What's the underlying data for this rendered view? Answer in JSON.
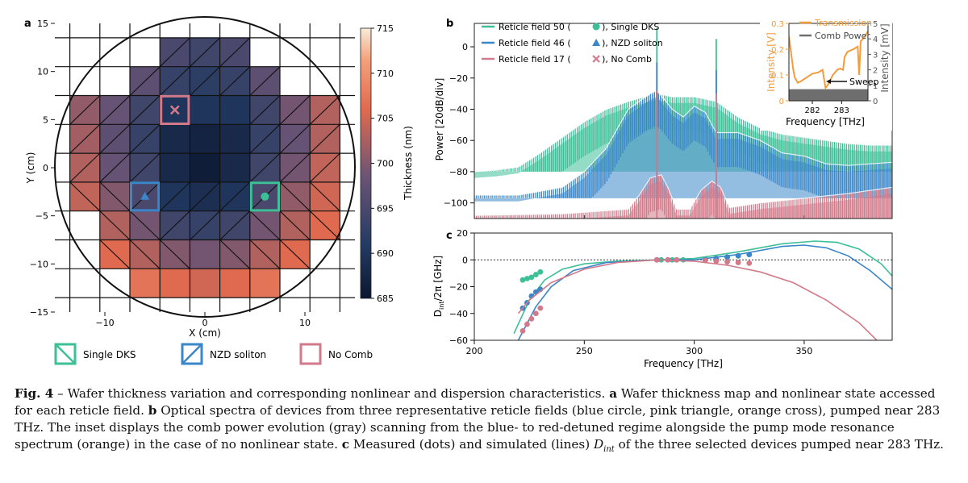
{
  "panels": {
    "a": "a",
    "b": "b",
    "c": "c"
  },
  "caption": {
    "fig_label": "Fig. 4",
    "dash": " – ",
    "intro": "Wafer thickness variation and corresponding nonlinear and dispersion characteristics.",
    "a_label": "a",
    "a_text": "Wafer thickness map and nonlinear state accessed for each reticle field.",
    "b_label": "b",
    "b_text": "Optical spectra of devices from three representative reticle fields (blue circle, pink triangle, orange cross), pumped near 283 THz. The inset displays the comb power evolution (gray) scanning from the blue- to red-detuned regime alongside the pump mode resonance spectrum (orange) in the case of no nonlinear state.",
    "c_label": "c",
    "c_text_1": "Measured (dots) and simulated (lines)",
    "dint_math": "D",
    "dint_sub": "int",
    "c_text_2": "of the three selected devices pumped near 283 THz."
  },
  "colors": {
    "dks": "#3dbf97",
    "nzd": "#3a86c8",
    "nocomb": "#d27a8a",
    "orange": "#f39c3c",
    "gray": "#6e6e6e"
  },
  "chart_data": [
    {
      "id": "a",
      "type": "heatmap",
      "xlabel": "X (cm)",
      "ylabel": "Y (cm)",
      "xlim": [
        -15,
        15
      ],
      "ylim": [
        -15,
        15
      ],
      "xticks": [
        -10,
        0,
        10
      ],
      "yticks": [
        -15,
        -10,
        -5,
        0,
        5,
        10,
        15
      ],
      "cell_size_cm": 3,
      "colorbar": {
        "label": "Thickness (nm)",
        "min": 685,
        "max": 715,
        "ticks": [
          685,
          690,
          695,
          700,
          705,
          710,
          715
        ]
      },
      "columns_x": [
        -12,
        -9,
        -6,
        -3,
        0,
        3,
        6,
        9,
        12
      ],
      "rows_y": [
        12,
        9,
        6,
        3,
        0,
        -3,
        -6,
        -9,
        -12
      ],
      "thickness_nm": [
        [
          null,
          null,
          null,
          695,
          694,
          695,
          null,
          null,
          null
        ],
        [
          null,
          null,
          697,
          693,
          692,
          693,
          697,
          null,
          null
        ],
        [
          701,
          698,
          694,
          690,
          690,
          690,
          694,
          699,
          703
        ],
        [
          702,
          697,
          693,
          688,
          687,
          688,
          693,
          698,
          703
        ],
        [
          703,
          698,
          694,
          688,
          686,
          688,
          694,
          699,
          704
        ],
        [
          704,
          700,
          695,
          690,
          689,
          690,
          695,
          701,
          705
        ],
        [
          null,
          703,
          699,
          694,
          693,
          694,
          699,
          703,
          706
        ],
        [
          null,
          706,
          703,
          700,
          699,
          700,
          703,
          706,
          null
        ],
        [
          null,
          null,
          707,
          706,
          705,
          706,
          707,
          null,
          null
        ]
      ],
      "state_map": [
        [
          "",
          "",
          "",
          "N",
          "N",
          "N",
          "",
          "",
          ""
        ],
        [
          "",
          "",
          "N",
          "N",
          "N",
          "N",
          "N",
          "",
          ""
        ],
        [
          "N",
          "N",
          "N",
          "",
          "",
          "",
          "N",
          "N",
          "N"
        ],
        [
          "N",
          "N",
          "N",
          "",
          "",
          "",
          "N",
          "N",
          "N"
        ],
        [
          "N",
          "N",
          "N",
          "",
          "",
          "",
          "N",
          "N",
          "N"
        ],
        [
          "S",
          "S",
          "N",
          "N",
          "N",
          "N",
          "N",
          "S",
          "S"
        ],
        [
          "",
          "S",
          "S",
          "N",
          "N",
          "N",
          "S",
          "S",
          "S"
        ],
        [
          "",
          "S",
          "S",
          "S",
          "",
          "S",
          "S",
          "S",
          ""
        ],
        [
          "",
          "",
          "",
          "",
          "",
          "",
          "",
          "",
          ""
        ]
      ],
      "highlighted": [
        {
          "type": "nocomb",
          "row": 2,
          "col": 3
        },
        {
          "type": "nzd",
          "row": 5,
          "col": 2
        },
        {
          "type": "dks",
          "row": 5,
          "col": 6
        }
      ],
      "legend": [
        {
          "type": "dks",
          "label": "Single DKS"
        },
        {
          "type": "nzd",
          "label": "NZD soliton"
        },
        {
          "type": "nocomb",
          "label": "No Comb"
        }
      ]
    },
    {
      "id": "b",
      "type": "line",
      "ylabel": "Power [20dB/div]",
      "xlim": [
        200,
        390
      ],
      "ylim": [
        -110,
        15
      ],
      "yticks": [
        0,
        -20,
        -40,
        -60,
        -80,
        -100
      ],
      "series": [
        {
          "key": "dks",
          "name": "Reticle field 50",
          "label_suffix": ", Single DKS",
          "marker": "circle",
          "envelope": [
            [
              200,
              -80
            ],
            [
              210,
              -79
            ],
            [
              220,
              -77
            ],
            [
              230,
              -68
            ],
            [
              240,
              -58
            ],
            [
              250,
              -48
            ],
            [
              260,
              -40
            ],
            [
              270,
              -35
            ],
            [
              280,
              -31
            ],
            [
              283,
              -30
            ],
            [
              290,
              -32
            ],
            [
              300,
              -32
            ],
            [
              310,
              -35
            ],
            [
              320,
              -45
            ],
            [
              330,
              -52
            ],
            [
              340,
              -56
            ],
            [
              350,
              -58
            ],
            [
              360,
              -60
            ],
            [
              370,
              -62
            ],
            [
              380,
              -63
            ],
            [
              390,
              -63
            ]
          ]
        },
        {
          "key": "nzd",
          "name": "Reticle field 46",
          "label_suffix": ", NZD soliton",
          "marker": "triangle",
          "envelope": [
            [
              200,
              -95
            ],
            [
              220,
              -95
            ],
            [
              240,
              -90
            ],
            [
              250,
              -80
            ],
            [
              260,
              -65
            ],
            [
              270,
              -40
            ],
            [
              280,
              -30
            ],
            [
              283,
              -28
            ],
            [
              290,
              -40
            ],
            [
              295,
              -45
            ],
            [
              300,
              -38
            ],
            [
              305,
              -42
            ],
            [
              310,
              -55
            ],
            [
              320,
              -55
            ],
            [
              330,
              -60
            ],
            [
              340,
              -68
            ],
            [
              350,
              -70
            ],
            [
              360,
              -75
            ],
            [
              370,
              -76
            ],
            [
              380,
              -75
            ],
            [
              390,
              -74
            ]
          ]
        },
        {
          "key": "nocomb",
          "name": "Reticle field 17",
          "label_suffix": ", No Comb",
          "marker": "cross",
          "envelope": [
            [
              200,
              -108
            ],
            [
              240,
              -107
            ],
            [
              270,
              -104
            ],
            [
              275,
              -95
            ],
            [
              280,
              -84
            ],
            [
              285,
              -82
            ],
            [
              288,
              -90
            ],
            [
              292,
              -104
            ],
            [
              298,
              -104
            ],
            [
              303,
              -92
            ],
            [
              308,
              -86
            ],
            [
              312,
              -90
            ],
            [
              316,
              -103
            ],
            [
              330,
              -100
            ],
            [
              350,
              -97
            ],
            [
              370,
              -94
            ],
            [
              390,
              -90
            ]
          ]
        }
      ],
      "pump_lines": [
        {
          "key": "dks",
          "x": 283,
          "top": 12
        },
        {
          "key": "nzd",
          "x": 283,
          "top": -10
        },
        {
          "key": "nocomb",
          "x": 283,
          "top": -28
        },
        {
          "key": "dks",
          "x": 310,
          "top": 5
        },
        {
          "key": "nzd",
          "x": 310,
          "top": -15
        },
        {
          "key": "nocomb",
          "x": 310,
          "top": -30
        }
      ],
      "inset": {
        "xlabel": "Frequency [THz]",
        "ylabel_left": "Intensity [V]",
        "ylabel_right": "Intensity [mV]",
        "xlim": [
          281.2,
          283.9
        ],
        "xticks": [
          282,
          283
        ],
        "ylim_left": [
          0,
          0.3
        ],
        "yticks_left": [
          0,
          0.1,
          0.2,
          0.3
        ],
        "ylim_right": [
          0,
          5
        ],
        "yticks_right": [
          0,
          1,
          2,
          3,
          4,
          5
        ],
        "legend": [
          {
            "key": "orange",
            "label": "Transmission"
          },
          {
            "key": "gray",
            "label": "Comb Power"
          }
        ],
        "annotation": "Sweep",
        "transmission": [
          [
            281.2,
            0.25
          ],
          [
            281.35,
            0.12
          ],
          [
            281.4,
            0.09
          ],
          [
            281.5,
            0.07
          ],
          [
            281.6,
            0.075
          ],
          [
            281.8,
            0.09
          ],
          [
            282.0,
            0.105
          ],
          [
            282.2,
            0.11
          ],
          [
            282.35,
            0.12
          ],
          [
            282.45,
            0.05
          ],
          [
            282.55,
            0.065
          ],
          [
            282.7,
            0.1
          ],
          [
            282.85,
            0.12
          ],
          [
            282.95,
            0.125
          ],
          [
            283.05,
            0.12
          ],
          [
            283.1,
            0.17
          ],
          [
            283.2,
            0.19
          ],
          [
            283.4,
            0.2
          ],
          [
            283.55,
            0.21
          ],
          [
            283.6,
            0.1
          ],
          [
            283.65,
            0.23
          ],
          [
            283.8,
            0.25
          ],
          [
            283.9,
            0.27
          ]
        ],
        "comb_power_mV": 0.5
      }
    },
    {
      "id": "c",
      "type": "line",
      "xlabel": "Frequency [THz]",
      "ylabel": "D_int/2π [GHz]",
      "xlim": [
        200,
        390
      ],
      "ylim": [
        -60,
        20
      ],
      "xticks": [
        200,
        250,
        300,
        350
      ],
      "yticks": [
        -60,
        -40,
        -20,
        0,
        20
      ],
      "series": [
        {
          "key": "dks",
          "name": "Single DKS",
          "sim": [
            [
              218,
              -55
            ],
            [
              225,
              -30
            ],
            [
              232,
              -15
            ],
            [
              240,
              -7
            ],
            [
              250,
              -3
            ],
            [
              265,
              -1
            ],
            [
              283,
              0
            ],
            [
              300,
              1
            ],
            [
              320,
              6
            ],
            [
              340,
              12
            ],
            [
              355,
              14
            ],
            [
              365,
              13
            ],
            [
              375,
              8
            ],
            [
              385,
              -3
            ],
            [
              390,
              -12
            ]
          ],
          "measured": [
            [
              222,
              -15
            ],
            [
              224,
              -14
            ],
            [
              226,
              -13
            ],
            [
              228,
              -11
            ],
            [
              230,
              -9
            ],
            [
              283,
              0
            ],
            [
              285,
              0
            ],
            [
              290,
              0
            ],
            [
              295,
              0
            ],
            [
              305,
              0.5
            ],
            [
              310,
              1
            ],
            [
              315,
              2
            ],
            [
              320,
              3
            ],
            [
              325,
              4
            ]
          ]
        },
        {
          "key": "nzd",
          "name": "NZD soliton",
          "sim": [
            [
              220,
              -60
            ],
            [
              228,
              -35
            ],
            [
              235,
              -20
            ],
            [
              245,
              -8
            ],
            [
              260,
              -2
            ],
            [
              283,
              0
            ],
            [
              300,
              0
            ],
            [
              320,
              4
            ],
            [
              340,
              10
            ],
            [
              350,
              11
            ],
            [
              360,
              9
            ],
            [
              370,
              3
            ],
            [
              380,
              -8
            ],
            [
              390,
              -22
            ]
          ],
          "measured": [
            [
              222,
              -36
            ],
            [
              224,
              -32
            ],
            [
              226,
              -27
            ],
            [
              228,
              -24
            ],
            [
              230,
              -22
            ],
            [
              283,
              0
            ],
            [
              288,
              0
            ],
            [
              292,
              0
            ],
            [
              305,
              0
            ],
            [
              310,
              1
            ],
            [
              315,
              2
            ],
            [
              320,
              3
            ],
            [
              325,
              4
            ]
          ]
        },
        {
          "key": "nocomb",
          "name": "No Comb",
          "sim": [
            [
              220,
              -40
            ],
            [
              225,
              -30
            ],
            [
              235,
              -17
            ],
            [
              250,
              -7
            ],
            [
              265,
              -2
            ],
            [
              283,
              0
            ],
            [
              300,
              -1
            ],
            [
              315,
              -4
            ],
            [
              330,
              -9
            ],
            [
              345,
              -17
            ],
            [
              360,
              -30
            ],
            [
              375,
              -47
            ],
            [
              383,
              -60
            ]
          ],
          "measured": [
            [
              222,
              -53
            ],
            [
              224,
              -48
            ],
            [
              226,
              -44
            ],
            [
              228,
              -40
            ],
            [
              230,
              -36
            ],
            [
              283,
              0
            ],
            [
              288,
              0
            ],
            [
              292,
              0
            ],
            [
              305,
              -0.5
            ],
            [
              310,
              -1
            ],
            [
              315,
              -1.5
            ],
            [
              320,
              -2
            ],
            [
              325,
              -2.5
            ]
          ]
        }
      ]
    }
  ]
}
